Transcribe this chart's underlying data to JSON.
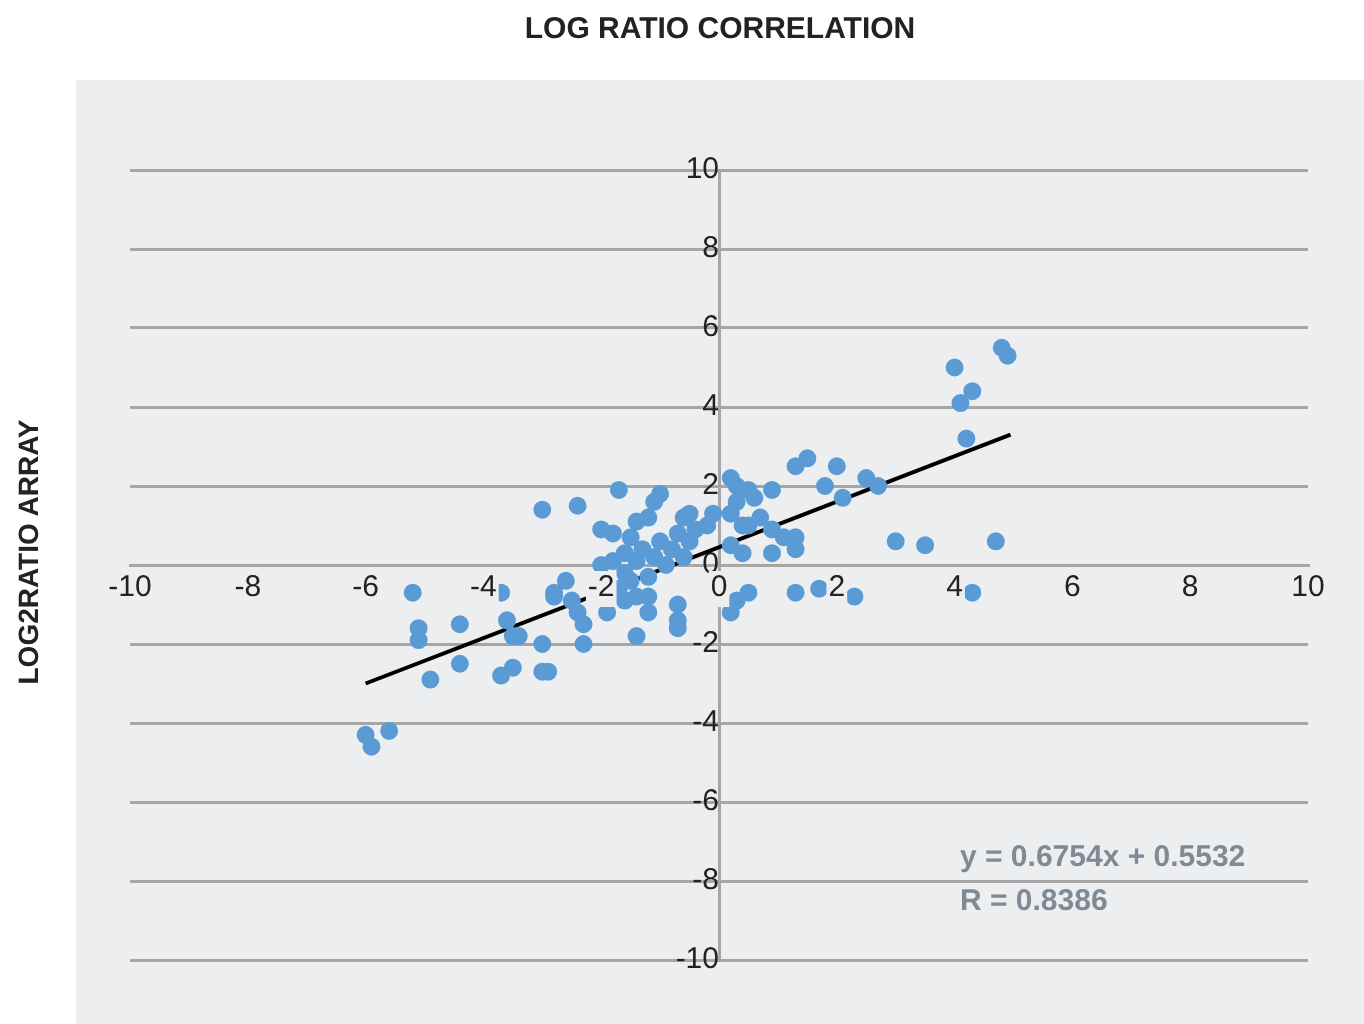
{
  "chart_data": {
    "type": "scatter",
    "title": "LOG RATIO CORRELATION",
    "ylabel": "LOG2RATIO ARRAY",
    "xlim": [
      -10,
      10
    ],
    "xticks": [
      -10,
      -8,
      -6,
      -4,
      -2,
      0,
      2,
      4,
      6,
      8,
      10
    ],
    "ylim": [
      -10,
      10
    ],
    "yticks": [
      -10,
      -8,
      -6,
      -4,
      -2,
      0,
      2,
      4,
      6,
      8,
      10
    ],
    "grid": "y",
    "legend": false,
    "annotations": [
      "y = 0.6754x + 0.5532",
      "R = 0.8386"
    ],
    "series": [
      {
        "color": "#5b9bd5",
        "marker": "circle",
        "x": [
          -6.0,
          -5.9,
          -5.6,
          -5.2,
          -5.1,
          -5.1,
          -4.9,
          -4.4,
          -4.4,
          -3.7,
          -3.7,
          -3.5,
          -3.6,
          -3.5,
          -3.4,
          -3.0,
          -2.9,
          -3.0,
          -3.0,
          -2.4,
          -1.7,
          -2.8,
          -2.6,
          -2.8,
          -2.3,
          -2.3,
          -2.0,
          -1.8,
          -1.5,
          -1.4,
          -1.2,
          -1.1,
          -1.0,
          -1.2,
          -1.4,
          -0.7,
          -0.7,
          -0.7,
          -0.6,
          -0.5,
          -2.0,
          -1.8,
          -1.7,
          -1.6,
          -1.6,
          -1.5,
          -1.4,
          -1.3,
          -1.2,
          -1.1,
          -1.0,
          -0.9,
          -0.8,
          -0.7,
          -0.6,
          -0.5,
          -0.4,
          -0.2,
          -0.1,
          -2.5,
          -2.4,
          -1.9,
          -1.6,
          -1.4,
          -1.2,
          0.2,
          0.3,
          0.3,
          0.2,
          0.5,
          0.6,
          0.9,
          0.4,
          0.5,
          0.7,
          0.9,
          1.1,
          1.3,
          1.3,
          0.2,
          0.4,
          0.9,
          0.3,
          0.5,
          0.2,
          1.3,
          1.7,
          2.3,
          1.3,
          1.5,
          1.8,
          2.0,
          2.1,
          2.5,
          2.7,
          3.0,
          3.5,
          4.7,
          4.0,
          4.1,
          4.3,
          4.2,
          4.3,
          4.8,
          4.9
        ],
        "values": [
          -4.3,
          -4.6,
          -4.2,
          -0.7,
          -1.6,
          -1.9,
          -2.9,
          -2.5,
          -1.5,
          -0.7,
          -2.8,
          -2.6,
          -1.4,
          -1.8,
          -1.8,
          -2.7,
          -2.7,
          -2.0,
          1.4,
          1.5,
          1.9,
          -0.7,
          -0.4,
          -0.8,
          -2.0,
          -1.5,
          0.9,
          0.8,
          0.7,
          1.1,
          1.2,
          1.6,
          1.8,
          -1.2,
          -1.8,
          -1.6,
          -1.0,
          -1.4,
          1.2,
          1.3,
          0.0,
          0.1,
          -0.6,
          -0.2,
          0.3,
          -0.4,
          0.1,
          0.4,
          -0.3,
          0.2,
          0.6,
          0.0,
          0.4,
          0.8,
          0.2,
          0.6,
          0.9,
          1.0,
          1.3,
          -0.9,
          -1.2,
          -1.2,
          -0.9,
          -0.8,
          -0.8,
          2.2,
          2.0,
          1.6,
          1.3,
          1.9,
          1.7,
          1.9,
          1.0,
          1.0,
          1.2,
          0.9,
          0.7,
          0.7,
          0.4,
          0.5,
          0.3,
          0.3,
          -0.9,
          -0.7,
          -1.2,
          -0.7,
          -0.6,
          -0.8,
          2.5,
          2.7,
          2.0,
          2.5,
          1.7,
          2.2,
          2.0,
          0.6,
          0.5,
          0.6,
          5.0,
          4.1,
          4.4,
          3.2,
          -0.7,
          5.5,
          5.3
        ]
      },
      {
        "type": "line",
        "marker": "none",
        "color": "#000000",
        "x": [
          -6.0,
          4.95
        ],
        "values": [
          -3.0,
          3.3
        ]
      }
    ]
  }
}
